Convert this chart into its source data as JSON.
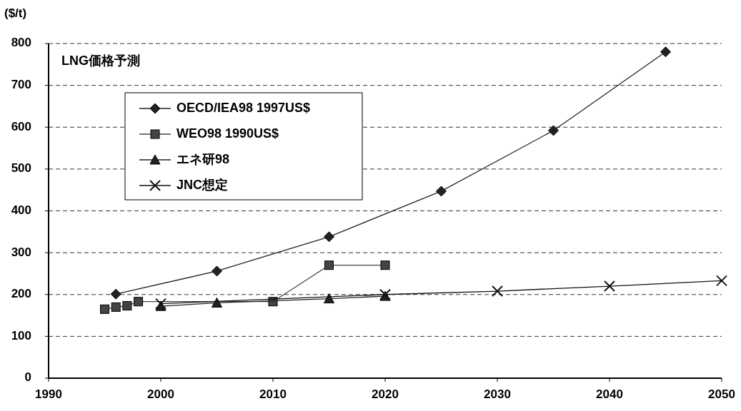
{
  "chart_data": {
    "type": "line",
    "title": "LNG価格予測",
    "ylabel": "($/t)",
    "xlim": [
      1990,
      2050
    ],
    "xticks": [
      1990,
      2000,
      2010,
      2020,
      2030,
      2040,
      2050
    ],
    "ylim": [
      0,
      800
    ],
    "yticks": [
      0,
      100,
      200,
      300,
      400,
      500,
      600,
      700,
      800
    ],
    "grid": "y",
    "legend": "top left",
    "series": [
      {
        "name": "OECD/IEA98 1997US$",
        "color": "#222222",
        "marker": "diamond",
        "x": [
          1996,
          2005,
          2015,
          2025,
          2035,
          2045
        ],
        "values": [
          201,
          256,
          338,
          447,
          592,
          780
        ]
      },
      {
        "name": "WEO98 1990US$",
        "color": "#444444",
        "marker": "square",
        "x": [
          1995,
          1996,
          1997,
          1998,
          2010,
          2015,
          2020
        ],
        "values": [
          165,
          170,
          173,
          183,
          183,
          270,
          270
        ]
      },
      {
        "name": "エネ研98",
        "color": "#222222",
        "marker": "triangle",
        "x": [
          2000,
          2005,
          2015,
          2020
        ],
        "values": [
          172,
          180,
          190,
          196
        ]
      },
      {
        "name": "JNC想定",
        "color": "#111111",
        "marker": "cross",
        "x": [
          2000,
          2020,
          2030,
          2040,
          2050
        ],
        "values": [
          178,
          200,
          208,
          220,
          233
        ]
      }
    ]
  }
}
